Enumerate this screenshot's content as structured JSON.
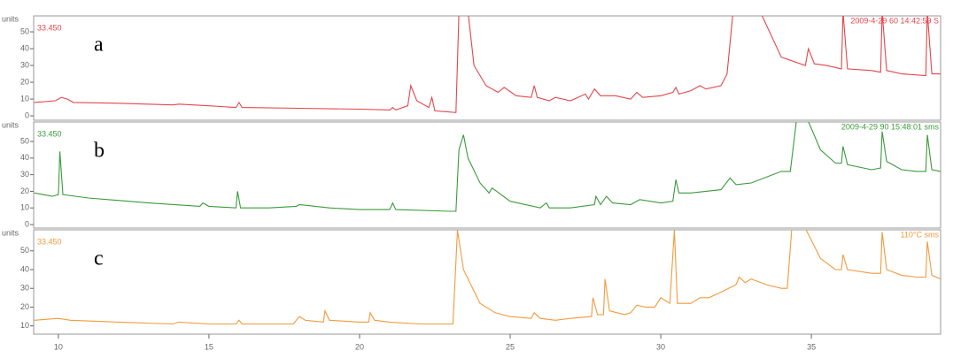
{
  "chart_data": [
    {
      "type": "line",
      "annotation": "a",
      "y_label": "units",
      "trace_label": "33.450",
      "header": "2009-4-29 60 14:42:59 S",
      "xlim": [
        9.18,
        39.29
      ],
      "ylim": [
        -2.6,
        59.5
      ],
      "yticks": [
        0,
        10,
        20,
        30,
        40,
        50
      ],
      "x": [
        9.2,
        9.9,
        10.1,
        10.3,
        10.5,
        12,
        13.8,
        14,
        15,
        15.9,
        16,
        16.1,
        18,
        20,
        21,
        21.1,
        21.2,
        21.6,
        21.7,
        21.9,
        22.3,
        22.4,
        22.5,
        23.2,
        23.3,
        23.6,
        23.8,
        24.2,
        24.6,
        24.8,
        25.2,
        25.7,
        25.8,
        25.9,
        26.3,
        26.5,
        27,
        27.5,
        27.6,
        27.8,
        28,
        28.5,
        29,
        29.2,
        29.4,
        30,
        30.4,
        30.5,
        30.6,
        31,
        31.3,
        31.5,
        32,
        32.2,
        32.4,
        33.3,
        34,
        34.8,
        34.9,
        35.1,
        35.5,
        36,
        36.05,
        36.2,
        37,
        37.3,
        37.35,
        37.5,
        38,
        38.8,
        38.85,
        39,
        39.29
      ],
      "series": [
        {
          "name": "a",
          "color": "#e4454b",
          "values": [
            8,
            9,
            11,
            10,
            8,
            7.5,
            6.5,
            7,
            6,
            5,
            8,
            5,
            4.5,
            4,
            3.5,
            5,
            3.5,
            6,
            18,
            9,
            5,
            11,
            3,
            2,
            62,
            62,
            30,
            18,
            14,
            17,
            12,
            11,
            18,
            11,
            9,
            11,
            9,
            13,
            10,
            16,
            12,
            12,
            10,
            14,
            11,
            12,
            14,
            17,
            13,
            15,
            18,
            16,
            18,
            25,
            62,
            62,
            35,
            30,
            40,
            31,
            30,
            28,
            62,
            28,
            27,
            26,
            62,
            27,
            25,
            24,
            62,
            25,
            25
          ]
        }
      ]
    },
    {
      "type": "line",
      "annotation": "b",
      "y_label": "units",
      "trace_label": "33.450",
      "header": "2009-4-29 90 15:48:01 sms",
      "xlim": [
        9.18,
        39.29
      ],
      "ylim": [
        -2.1,
        61.7
      ],
      "yticks": [
        0,
        10,
        20,
        30,
        40,
        50
      ],
      "x": [
        9.2,
        9.8,
        10,
        10.05,
        10.15,
        11,
        13,
        14.7,
        14.8,
        15,
        15.9,
        15.95,
        16.05,
        17,
        17.9,
        18,
        19,
        20,
        21,
        21.1,
        21.2,
        23,
        23.2,
        23.3,
        23.45,
        23.6,
        24,
        24.3,
        24.4,
        25,
        26,
        26.2,
        26.3,
        27,
        27.8,
        27.85,
        28,
        28.2,
        28.4,
        29,
        29.3,
        30,
        30.4,
        30.5,
        30.6,
        31,
        32,
        32.3,
        32.5,
        33,
        34,
        34.3,
        34.5,
        34.9,
        35.3,
        35.8,
        36,
        36.05,
        36.2,
        37,
        37.3,
        37.35,
        37.5,
        38,
        38.5,
        38.8,
        38.85,
        39,
        39.29
      ],
      "series": [
        {
          "name": "b",
          "color": "#3b9a3b",
          "values": [
            19,
            17,
            18,
            44,
            18,
            16,
            13,
            11,
            13,
            11,
            10,
            20,
            10,
            10,
            11,
            12,
            10,
            9,
            9,
            13,
            9,
            8,
            8,
            45,
            54,
            40,
            25,
            19,
            22,
            14,
            10,
            13,
            10,
            10,
            12,
            17,
            12,
            17,
            13,
            12,
            15,
            13,
            14,
            27,
            19,
            19,
            21,
            28,
            24,
            25,
            32,
            32,
            62,
            62,
            45,
            37,
            37,
            47,
            36,
            33,
            34,
            56,
            38,
            33,
            32,
            32,
            54,
            33,
            32
          ]
        }
      ]
    },
    {
      "type": "line",
      "annotation": "c",
      "y_label": "units",
      "trace_label": "33.450",
      "header": "110°C sms",
      "xlim": [
        9.18,
        39.29
      ],
      "ylim": [
        5.6,
        61.2
      ],
      "yticks": [
        10,
        20,
        30,
        40,
        50
      ],
      "xticks": [
        10,
        15,
        20,
        25,
        30,
        35
      ],
      "x": [
        9.2,
        10,
        10.4,
        12,
        13.8,
        14,
        15,
        15.9,
        16,
        16.1,
        17.8,
        18,
        18.2,
        18.8,
        18.85,
        19,
        20,
        20.3,
        20.35,
        20.5,
        21,
        22,
        23.1,
        23.25,
        23.45,
        24,
        24.5,
        25,
        25.7,
        25.8,
        26,
        26.5,
        27,
        27.7,
        27.75,
        27.9,
        28.1,
        28.15,
        28.3,
        28.8,
        29,
        29.2,
        29.5,
        29.8,
        30,
        30.3,
        30.45,
        30.55,
        31,
        31.3,
        31.6,
        32,
        32.5,
        32.6,
        32.8,
        33,
        33.5,
        34,
        34.2,
        34.35,
        34.8,
        35.3,
        35.8,
        36,
        36.05,
        36.2,
        37,
        37.3,
        37.35,
        37.5,
        38,
        38.5,
        38.8,
        38.85,
        39,
        39.29
      ],
      "series": [
        {
          "name": "c",
          "color": "#f39a3c",
          "values": [
            13,
            14,
            13,
            12,
            11,
            12,
            11,
            11,
            13,
            11,
            11,
            15,
            13,
            12,
            18,
            13,
            12,
            12,
            17,
            13,
            12,
            11,
            11,
            61,
            40,
            22,
            17,
            15,
            14,
            17,
            14,
            13,
            14,
            15,
            25,
            16,
            16,
            35,
            18,
            16,
            17,
            21,
            20,
            20,
            25,
            22,
            61,
            22,
            22,
            25,
            25,
            28,
            32,
            36,
            33,
            35,
            32,
            30,
            30,
            62,
            62,
            46,
            40,
            40,
            48,
            40,
            38,
            38,
            60,
            40,
            37,
            36,
            36,
            55,
            37,
            35
          ]
        }
      ]
    }
  ]
}
